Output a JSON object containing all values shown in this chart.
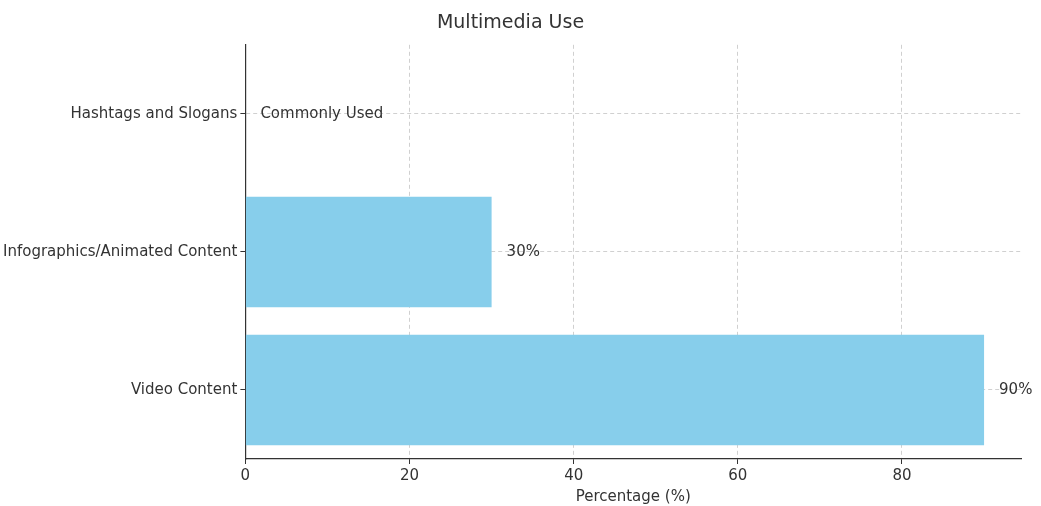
{
  "chart_data": {
    "type": "bar",
    "orientation": "horizontal",
    "title": "Multimedia Use",
    "xlabel": "Percentage (%)",
    "categories": [
      "Hashtags and Slogans",
      "Infographics/Animated Content",
      "Video Content"
    ],
    "values": [
      0,
      30,
      90
    ],
    "value_labels": [
      "Commonly Used",
      "30%",
      "90%"
    ],
    "color": "#87ceeb",
    "xlim": [
      0,
      94.5
    ],
    "xticks": [
      0,
      20,
      40,
      60,
      80
    ],
    "grid": true
  }
}
